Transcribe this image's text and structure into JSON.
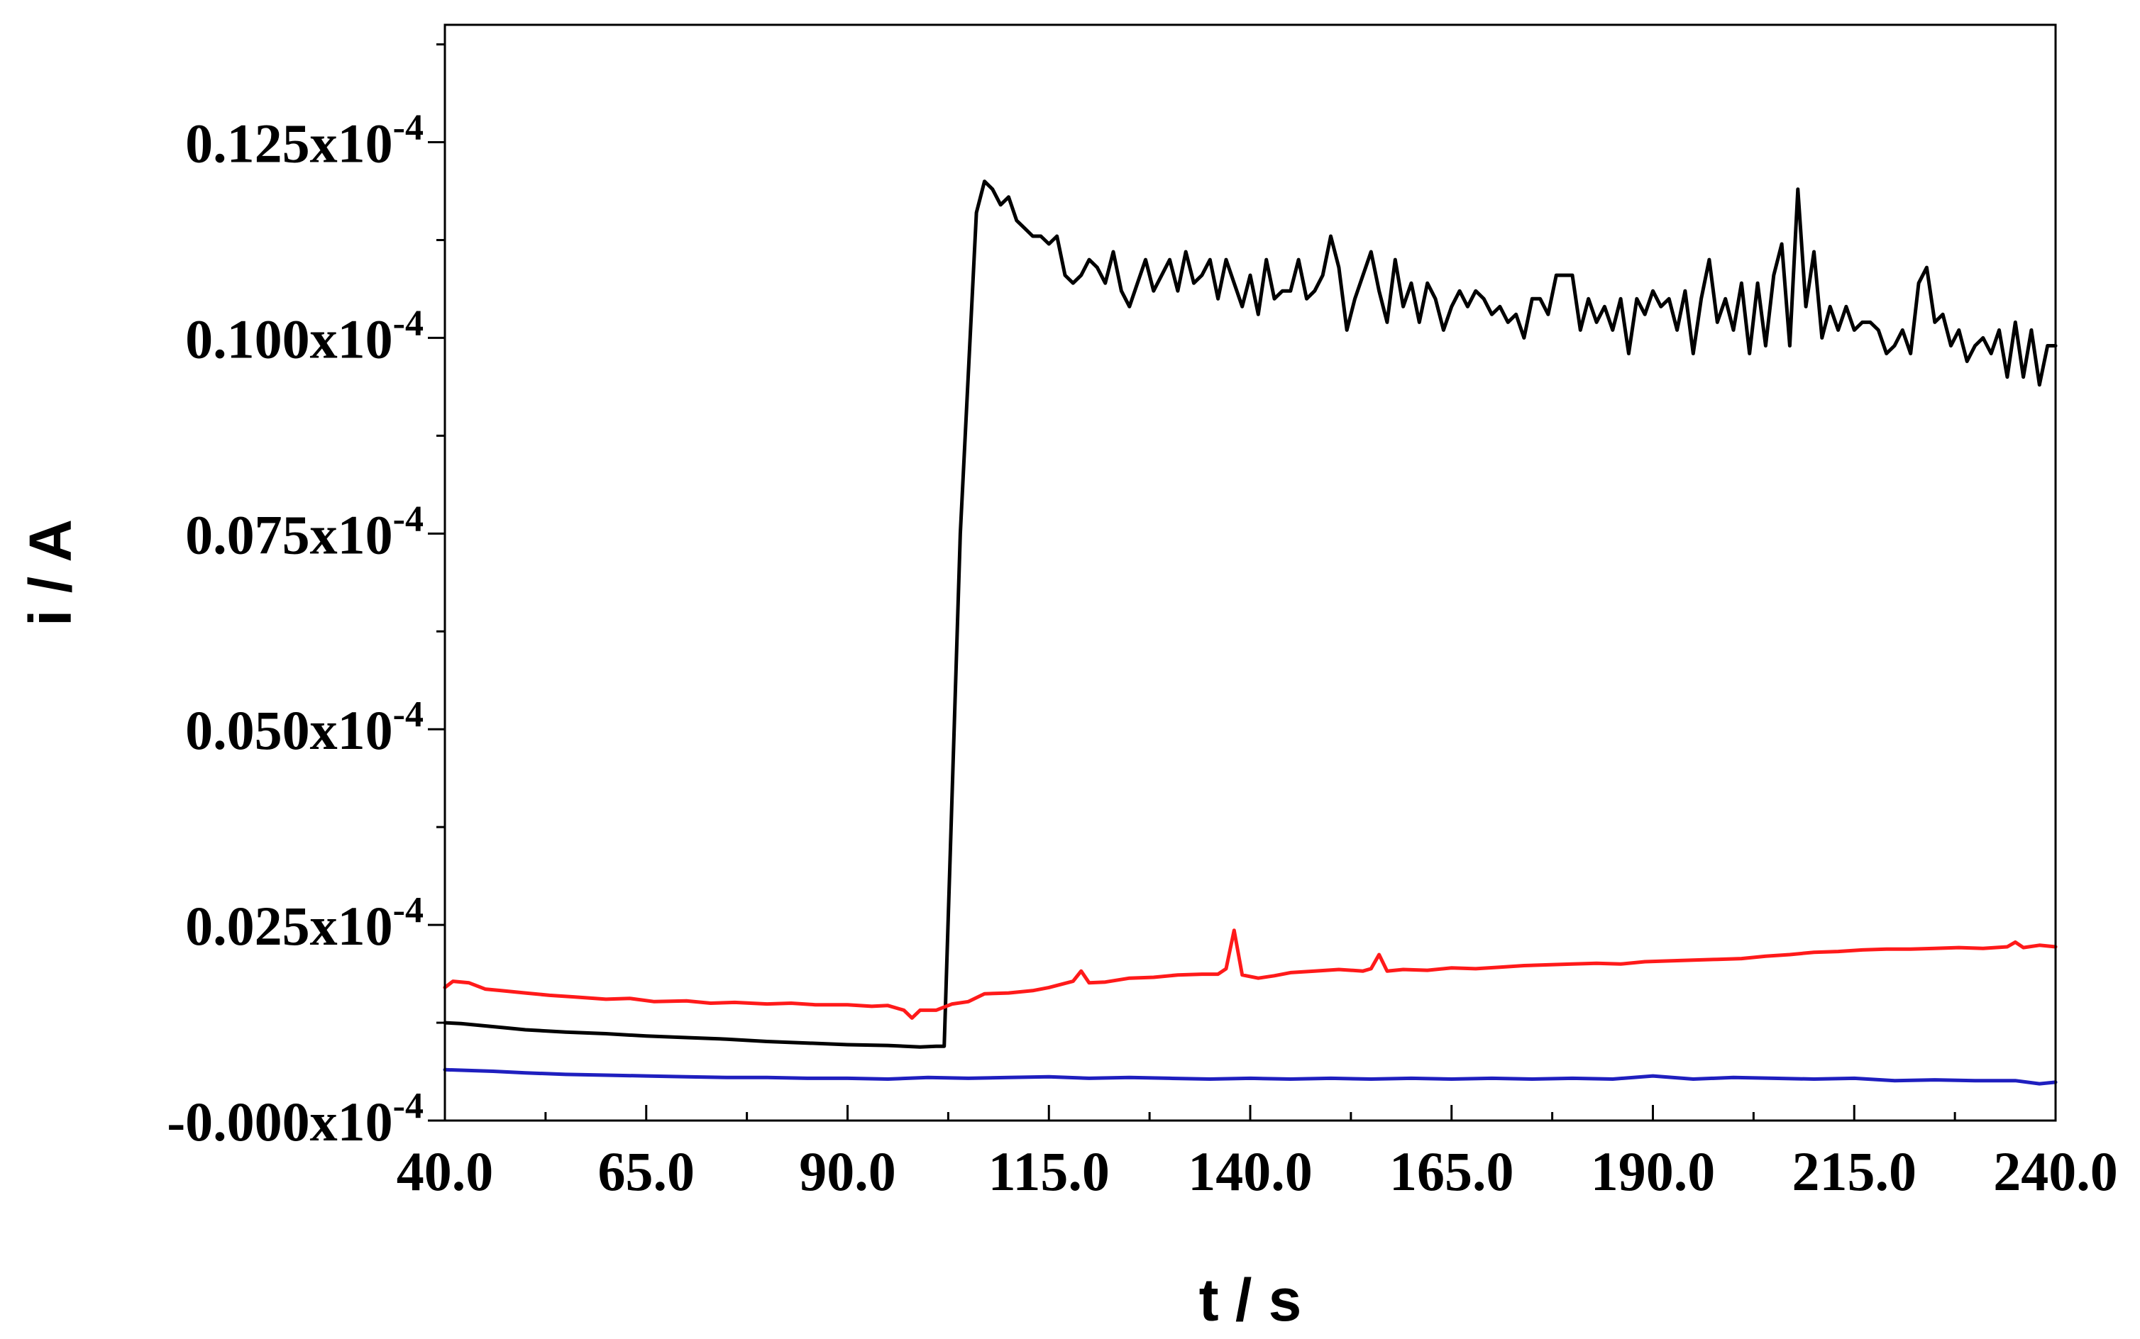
{
  "chart_data": {
    "type": "line",
    "title": "",
    "xlabel": "t / s",
    "ylabel": "i / A",
    "xlim": [
      40,
      240
    ],
    "ylim": [
      0,
      0.14
    ],
    "y_unit_label": "x10",
    "y_exponent": "-4",
    "x_ticks": [
      {
        "value": 40,
        "label": "40.0"
      },
      {
        "value": 65,
        "label": "65.0"
      },
      {
        "value": 90,
        "label": "90.0"
      },
      {
        "value": 115,
        "label": "115.0"
      },
      {
        "value": 140,
        "label": "140.0"
      },
      {
        "value": 165,
        "label": "165.0"
      },
      {
        "value": 190,
        "label": "190.0"
      },
      {
        "value": 215,
        "label": "215.0"
      },
      {
        "value": 240,
        "label": "240.0"
      }
    ],
    "y_ticks": [
      {
        "value": 0,
        "label": "-0.000"
      },
      {
        "value": 0.025,
        "label": "0.025"
      },
      {
        "value": 0.05,
        "label": "0.050"
      },
      {
        "value": 0.075,
        "label": "0.075"
      },
      {
        "value": 0.1,
        "label": "0.100"
      },
      {
        "value": 0.125,
        "label": "0.125"
      }
    ],
    "grid": false,
    "series": [
      {
        "color": "#000000",
        "points": [
          [
            40,
            0.0125
          ],
          [
            42,
            0.0124
          ],
          [
            45,
            0.0121
          ],
          [
            48,
            0.0118
          ],
          [
            50,
            0.0116
          ],
          [
            55,
            0.0113
          ],
          [
            60,
            0.0111
          ],
          [
            65,
            0.0108
          ],
          [
            70,
            0.0106
          ],
          [
            75,
            0.0104
          ],
          [
            80,
            0.0101
          ],
          [
            85,
            0.0099
          ],
          [
            90,
            0.0097
          ],
          [
            95,
            0.0096
          ],
          [
            99,
            0.0094
          ],
          [
            101,
            0.0095
          ],
          [
            102,
            0.0095
          ],
          [
            104,
            0.075
          ],
          [
            106,
            0.116
          ],
          [
            107,
            0.12
          ],
          [
            108,
            0.119
          ],
          [
            109,
            0.117
          ],
          [
            110,
            0.118
          ],
          [
            111,
            0.115
          ],
          [
            112,
            0.114
          ],
          [
            113,
            0.113
          ],
          [
            114,
            0.113
          ],
          [
            115,
            0.112
          ],
          [
            116,
            0.113
          ],
          [
            117,
            0.108
          ],
          [
            118,
            0.107
          ],
          [
            119,
            0.108
          ],
          [
            120,
            0.11
          ],
          [
            121,
            0.109
          ],
          [
            122,
            0.107
          ],
          [
            123,
            0.111
          ],
          [
            124,
            0.106
          ],
          [
            125,
            0.104
          ],
          [
            126,
            0.107
          ],
          [
            127,
            0.11
          ],
          [
            128,
            0.106
          ],
          [
            129,
            0.108
          ],
          [
            130,
            0.11
          ],
          [
            131,
            0.106
          ],
          [
            132,
            0.111
          ],
          [
            133,
            0.107
          ],
          [
            134,
            0.108
          ],
          [
            135,
            0.11
          ],
          [
            136,
            0.105
          ],
          [
            137,
            0.11
          ],
          [
            138,
            0.107
          ],
          [
            139,
            0.104
          ],
          [
            140,
            0.108
          ],
          [
            141,
            0.103
          ],
          [
            142,
            0.11
          ],
          [
            143,
            0.105
          ],
          [
            144,
            0.106
          ],
          [
            145,
            0.106
          ],
          [
            146,
            0.11
          ],
          [
            147,
            0.105
          ],
          [
            148,
            0.106
          ],
          [
            149,
            0.108
          ],
          [
            150,
            0.113
          ],
          [
            151,
            0.109
          ],
          [
            152,
            0.101
          ],
          [
            153,
            0.105
          ],
          [
            154,
            0.108
          ],
          [
            155,
            0.111
          ],
          [
            156,
            0.106
          ],
          [
            157,
            0.102
          ],
          [
            158,
            0.11
          ],
          [
            159,
            0.104
          ],
          [
            160,
            0.107
          ],
          [
            161,
            0.102
          ],
          [
            162,
            0.107
          ],
          [
            163,
            0.105
          ],
          [
            164,
            0.101
          ],
          [
            165,
            0.104
          ],
          [
            166,
            0.106
          ],
          [
            167,
            0.104
          ],
          [
            168,
            0.106
          ],
          [
            169,
            0.105
          ],
          [
            170,
            0.103
          ],
          [
            171,
            0.104
          ],
          [
            172,
            0.102
          ],
          [
            173,
            0.103
          ],
          [
            174,
            0.1
          ],
          [
            175,
            0.105
          ],
          [
            176,
            0.105
          ],
          [
            177,
            0.103
          ],
          [
            178,
            0.108
          ],
          [
            179,
            0.108
          ],
          [
            180,
            0.108
          ],
          [
            181,
            0.101
          ],
          [
            182,
            0.105
          ],
          [
            183,
            0.102
          ],
          [
            184,
            0.104
          ],
          [
            185,
            0.101
          ],
          [
            186,
            0.105
          ],
          [
            187,
            0.098
          ],
          [
            188,
            0.105
          ],
          [
            189,
            0.103
          ],
          [
            190,
            0.106
          ],
          [
            191,
            0.104
          ],
          [
            192,
            0.105
          ],
          [
            193,
            0.101
          ],
          [
            194,
            0.106
          ],
          [
            195,
            0.098
          ],
          [
            196,
            0.105
          ],
          [
            197,
            0.11
          ],
          [
            198,
            0.102
          ],
          [
            199,
            0.105
          ],
          [
            200,
            0.101
          ],
          [
            201,
            0.107
          ],
          [
            202,
            0.098
          ],
          [
            203,
            0.107
          ],
          [
            204,
            0.099
          ],
          [
            205,
            0.108
          ],
          [
            206,
            0.112
          ],
          [
            207,
            0.099
          ],
          [
            208,
            0.119
          ],
          [
            209,
            0.104
          ],
          [
            210,
            0.111
          ],
          [
            211,
            0.1
          ],
          [
            212,
            0.104
          ],
          [
            213,
            0.101
          ],
          [
            214,
            0.104
          ],
          [
            215,
            0.101
          ],
          [
            216,
            0.102
          ],
          [
            217,
            0.102
          ],
          [
            218,
            0.101
          ],
          [
            219,
            0.098
          ],
          [
            220,
            0.099
          ],
          [
            221,
            0.101
          ],
          [
            222,
            0.098
          ],
          [
            223,
            0.107
          ],
          [
            224,
            0.109
          ],
          [
            225,
            0.102
          ],
          [
            226,
            0.103
          ],
          [
            227,
            0.099
          ],
          [
            228,
            0.101
          ],
          [
            229,
            0.097
          ],
          [
            230,
            0.099
          ],
          [
            231,
            0.1
          ],
          [
            232,
            0.098
          ],
          [
            233,
            0.101
          ],
          [
            234,
            0.095
          ],
          [
            235,
            0.102
          ],
          [
            236,
            0.095
          ],
          [
            237,
            0.101
          ],
          [
            238,
            0.094
          ],
          [
            239,
            0.099
          ],
          [
            240,
            0.099
          ]
        ]
      },
      {
        "color": "#ff1a1a",
        "points": [
          [
            40,
            0.017
          ],
          [
            41,
            0.0178
          ],
          [
            43,
            0.0176
          ],
          [
            45,
            0.0168
          ],
          [
            47,
            0.0166
          ],
          [
            50,
            0.0163
          ],
          [
            53,
            0.016
          ],
          [
            56,
            0.0158
          ],
          [
            60,
            0.0155
          ],
          [
            63,
            0.0156
          ],
          [
            66,
            0.0152
          ],
          [
            70,
            0.0153
          ],
          [
            73,
            0.015
          ],
          [
            76,
            0.0151
          ],
          [
            80,
            0.0149
          ],
          [
            83,
            0.015
          ],
          [
            86,
            0.0148
          ],
          [
            90,
            0.0148
          ],
          [
            93,
            0.0146
          ],
          [
            95,
            0.0147
          ],
          [
            97,
            0.0141
          ],
          [
            98,
            0.0131
          ],
          [
            99,
            0.0141
          ],
          [
            101,
            0.0141
          ],
          [
            103,
            0.0149
          ],
          [
            105,
            0.0152
          ],
          [
            107,
            0.0162
          ],
          [
            110,
            0.0163
          ],
          [
            113,
            0.0166
          ],
          [
            115,
            0.017
          ],
          [
            118,
            0.0178
          ],
          [
            119,
            0.0191
          ],
          [
            120,
            0.0176
          ],
          [
            122,
            0.0177
          ],
          [
            125,
            0.0182
          ],
          [
            128,
            0.0183
          ],
          [
            131,
            0.0186
          ],
          [
            134,
            0.0187
          ],
          [
            136,
            0.0187
          ],
          [
            137,
            0.0194
          ],
          [
            138,
            0.0243
          ],
          [
            139,
            0.0186
          ],
          [
            141,
            0.0182
          ],
          [
            143,
            0.0185
          ],
          [
            145,
            0.0189
          ],
          [
            148,
            0.0191
          ],
          [
            151,
            0.0193
          ],
          [
            154,
            0.0191
          ],
          [
            155,
            0.0194
          ],
          [
            156,
            0.0212
          ],
          [
            157,
            0.0191
          ],
          [
            159,
            0.0193
          ],
          [
            162,
            0.0192
          ],
          [
            165,
            0.0195
          ],
          [
            168,
            0.0194
          ],
          [
            171,
            0.0196
          ],
          [
            174,
            0.0198
          ],
          [
            177,
            0.0199
          ],
          [
            180,
            0.02
          ],
          [
            183,
            0.0201
          ],
          [
            186,
            0.02
          ],
          [
            189,
            0.0203
          ],
          [
            192,
            0.0204
          ],
          [
            195,
            0.0205
          ],
          [
            198,
            0.0206
          ],
          [
            201,
            0.0207
          ],
          [
            204,
            0.021
          ],
          [
            207,
            0.0212
          ],
          [
            210,
            0.0215
          ],
          [
            213,
            0.0216
          ],
          [
            216,
            0.0218
          ],
          [
            219,
            0.0219
          ],
          [
            222,
            0.0219
          ],
          [
            225,
            0.022
          ],
          [
            228,
            0.0221
          ],
          [
            231,
            0.022
          ],
          [
            234,
            0.0222
          ],
          [
            235,
            0.0228
          ],
          [
            236,
            0.0221
          ],
          [
            238,
            0.0224
          ],
          [
            240,
            0.0222
          ]
        ]
      },
      {
        "color": "#1f1fbf",
        "points": [
          [
            40,
            0.0065
          ],
          [
            43,
            0.0064
          ],
          [
            46,
            0.0063
          ],
          [
            50,
            0.0061
          ],
          [
            55,
            0.0059
          ],
          [
            60,
            0.0058
          ],
          [
            65,
            0.0057
          ],
          [
            70,
            0.0056
          ],
          [
            75,
            0.0055
          ],
          [
            80,
            0.0055
          ],
          [
            85,
            0.0054
          ],
          [
            90,
            0.0054
          ],
          [
            95,
            0.0053
          ],
          [
            100,
            0.0055
          ],
          [
            105,
            0.0054
          ],
          [
            110,
            0.0055
          ],
          [
            115,
            0.0056
          ],
          [
            120,
            0.0054
          ],
          [
            125,
            0.0055
          ],
          [
            130,
            0.0054
          ],
          [
            135,
            0.0053
          ],
          [
            140,
            0.0054
          ],
          [
            145,
            0.0053
          ],
          [
            150,
            0.0054
          ],
          [
            155,
            0.0053
          ],
          [
            160,
            0.0054
          ],
          [
            165,
            0.0053
          ],
          [
            170,
            0.0054
          ],
          [
            175,
            0.0053
          ],
          [
            180,
            0.0054
          ],
          [
            185,
            0.0053
          ],
          [
            190,
            0.0057
          ],
          [
            195,
            0.0053
          ],
          [
            200,
            0.0055
          ],
          [
            205,
            0.0054
          ],
          [
            210,
            0.0053
          ],
          [
            215,
            0.0054
          ],
          [
            220,
            0.0051
          ],
          [
            225,
            0.0052
          ],
          [
            230,
            0.0051
          ],
          [
            235,
            0.0051
          ],
          [
            238,
            0.0047
          ],
          [
            240,
            0.0049
          ]
        ]
      }
    ]
  }
}
